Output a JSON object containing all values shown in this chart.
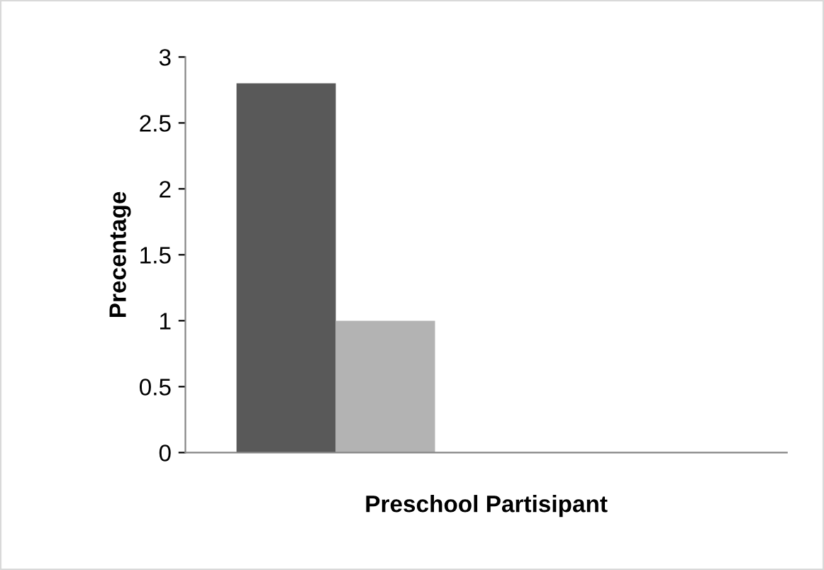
{
  "chart_data": {
    "type": "bar",
    "xlabel": "Preschool Partisipant",
    "ylabel": "Precentage",
    "categories": [
      null,
      null
    ],
    "series": [
      {
        "color": "#595959",
        "values": [
          2.8,
          null
        ]
      },
      {
        "color": "#b3b3b3",
        "values": [
          1.0,
          null
        ]
      }
    ],
    "ylim": [
      0,
      3
    ],
    "yticks": [
      0,
      0.5,
      1,
      1.5,
      2,
      2.5,
      3
    ],
    "grid": false,
    "legend": false
  }
}
